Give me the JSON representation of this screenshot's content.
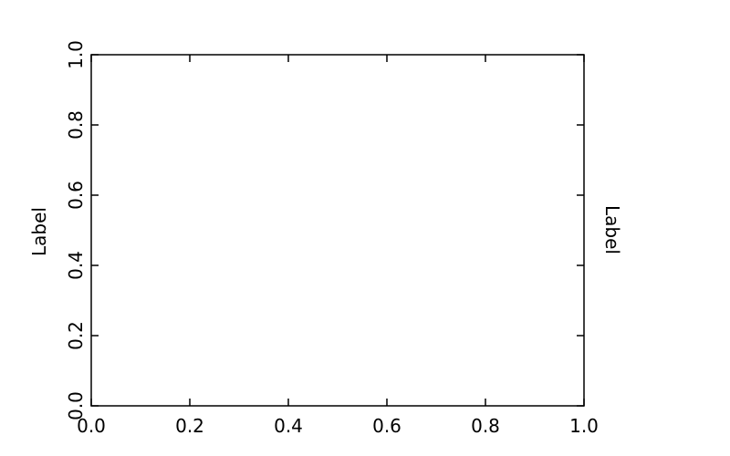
{
  "chart_data": {
    "type": "line",
    "title": "",
    "xlabel": "",
    "ylabel": "Label",
    "ylabel_right": "Label",
    "xlim": [
      0.0,
      1.0
    ],
    "ylim": [
      0.0,
      1.0
    ],
    "xticks": [
      "0.0",
      "0.2",
      "0.4",
      "0.6",
      "0.8",
      "1.0"
    ],
    "yticks": [
      "0.0",
      "0.2",
      "0.4",
      "0.6",
      "0.8",
      "1.0"
    ],
    "ytick_label_rotation": 90,
    "tick_direction": "in",
    "ticks_on_all_sides": true,
    "grid": false,
    "series": []
  }
}
